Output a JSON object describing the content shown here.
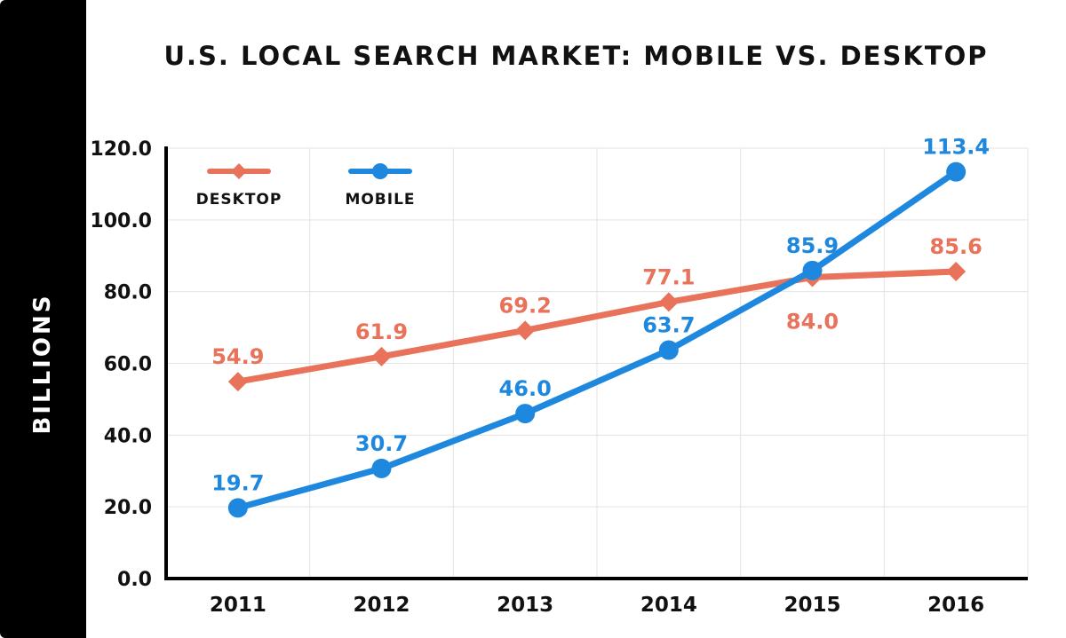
{
  "chart_data": {
    "type": "line",
    "title": "U.S. LOCAL SEARCH MARKET: MOBILE VS. DESKTOP",
    "ylabel": "BILLIONS",
    "xlabel": "",
    "categories": [
      "2011",
      "2012",
      "2013",
      "2014",
      "2015",
      "2016"
    ],
    "ylim": [
      0,
      120
    ],
    "yticks": [
      "0.0",
      "20.0",
      "40.0",
      "60.0",
      "80.0",
      "100.0",
      "120.0"
    ],
    "grid": true,
    "legend_position": "top-left",
    "series": [
      {
        "name": "DESKTOP",
        "color": "#E8725A",
        "marker": "diamond",
        "values": [
          54.9,
          61.9,
          69.2,
          77.1,
          84.0,
          85.6
        ],
        "labels": [
          "54.9",
          "61.9",
          "69.2",
          "77.1",
          "84.0",
          "85.6"
        ]
      },
      {
        "name": "MOBILE",
        "color": "#1E88DF",
        "marker": "circle",
        "values": [
          19.7,
          30.7,
          46.0,
          63.7,
          85.9,
          113.4
        ],
        "labels": [
          "19.7",
          "30.7",
          "46.0",
          "63.7",
          "85.9",
          "113.4"
        ]
      }
    ]
  }
}
